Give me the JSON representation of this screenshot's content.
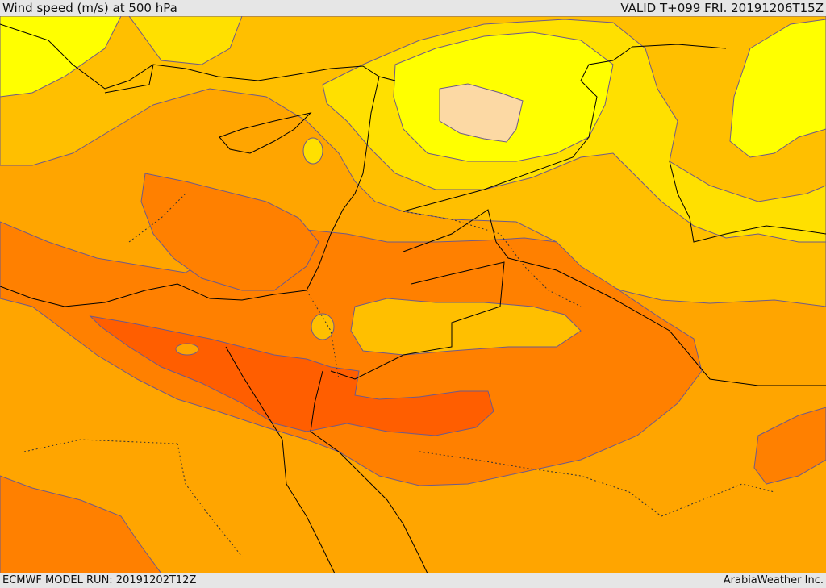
{
  "header": {
    "title": "Wind speed (m/s) at 500 hPa",
    "valid": "VALID T+099 FRI. 20191206T15Z"
  },
  "footer": {
    "model_run": "ECMWF MODEL RUN: 20191202T12Z",
    "credit": "ArabiaWeather Inc."
  },
  "colors": {
    "level_1": "#ffff00",
    "level_2": "#ffe000",
    "level_3": "#ffbf00",
    "level_4": "#ffa500",
    "level_5": "#ff8000",
    "level_6": "#ff5e00",
    "calm": "#fcd9a4",
    "contour": "#6e5a8a",
    "coast": "#000000"
  }
}
